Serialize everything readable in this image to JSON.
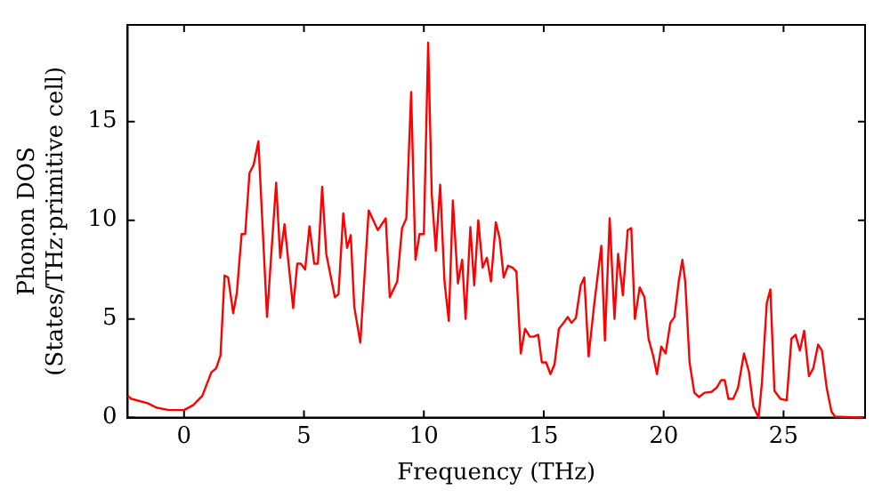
{
  "chart_data": {
    "type": "line",
    "xlabel": "Frequency (THz)",
    "ylabel": "Phonon DOS\n(States/THz·primitive cell)",
    "xlim": [
      -2.35,
      28.4
    ],
    "ylim": [
      0,
      19.9
    ],
    "xticks": [
      0,
      5,
      10,
      15,
      20,
      25
    ],
    "yticks": [
      0,
      5,
      10,
      15
    ],
    "grid": false,
    "legend": false,
    "marker": "none",
    "line_style": "solid",
    "x": [
      -2.35,
      -2.2,
      -1.52,
      -1.14,
      -0.63,
      0,
      0.38,
      0.76,
      1.14,
      1.34,
      1.52,
      1.69,
      1.84,
      2.05,
      2.2,
      2.4,
      2.55,
      2.73,
      2.9,
      3.1,
      3.46,
      3.84,
      4.01,
      4.19,
      4.55,
      4.72,
      4.87,
      5.05,
      5.23,
      5.43,
      5.58,
      5.76,
      5.93,
      6.29,
      6.44,
      6.64,
      6.8,
      6.95,
      7.1,
      7.35,
      7.7,
      8.08,
      8.41,
      8.58,
      8.89,
      9.09,
      9.27,
      9.47,
      9.65,
      9.82,
      10.0,
      10.18,
      10.33,
      10.5,
      10.68,
      10.86,
      11.04,
      11.21,
      11.42,
      11.6,
      11.74,
      11.94,
      12.1,
      12.27,
      12.45,
      12.63,
      12.8,
      13.0,
      13.16,
      13.33,
      13.51,
      13.69,
      13.86,
      14.04,
      14.22,
      14.42,
      14.57,
      14.77,
      14.92,
      15.1,
      15.28,
      15.45,
      15.63,
      15.83,
      16.0,
      16.16,
      16.34,
      16.54,
      16.69,
      16.87,
      17.1,
      17.4,
      17.55,
      17.75,
      17.95,
      18.1,
      18.3,
      18.5,
      18.65,
      18.8,
      19.0,
      19.2,
      19.37,
      19.57,
      19.72,
      19.9,
      20.08,
      20.28,
      20.45,
      20.63,
      20.78,
      20.9,
      21.08,
      21.28,
      21.48,
      21.7,
      21.99,
      22.2,
      22.4,
      22.55,
      22.7,
      22.9,
      23.1,
      23.35,
      23.56,
      23.74,
      23.96,
      24.1,
      24.3,
      24.45,
      24.62,
      24.87,
      25.13,
      25.33,
      25.5,
      25.68,
      25.86,
      26.06,
      26.24,
      26.44,
      26.6,
      26.8,
      27.0,
      27.15,
      28.3
    ],
    "series": [
      {
        "color": "#ff0000",
        "values": [
          1.1,
          0.95,
          0.73,
          0.5,
          0.38,
          0.38,
          0.63,
          1.1,
          2.3,
          2.5,
          3.15,
          7.2,
          7.1,
          5.3,
          6.3,
          9.3,
          9.3,
          12.4,
          12.8,
          14.0,
          5.1,
          11.9,
          8.1,
          9.8,
          5.55,
          7.8,
          7.8,
          7.5,
          9.7,
          7.8,
          7.8,
          11.7,
          8.3,
          6.1,
          6.25,
          10.35,
          8.6,
          9.25,
          5.6,
          3.8,
          10.5,
          9.5,
          10.1,
          6.1,
          6.9,
          9.6,
          10.1,
          16.5,
          8.0,
          9.3,
          9.3,
          19.0,
          11.3,
          8.45,
          11.8,
          6.9,
          4.9,
          11.0,
          6.8,
          8.0,
          5.0,
          9.65,
          6.7,
          10.0,
          7.6,
          8.1,
          6.9,
          9.9,
          9.1,
          7.1,
          7.7,
          7.6,
          7.4,
          3.25,
          4.5,
          4.1,
          4.1,
          4.2,
          2.8,
          2.8,
          2.2,
          2.7,
          4.5,
          4.8,
          5.1,
          4.8,
          5.05,
          6.7,
          7.1,
          3.1,
          5.7,
          8.7,
          3.9,
          10.1,
          5.0,
          8.3,
          6.2,
          9.5,
          9.6,
          5.0,
          6.6,
          6.1,
          4.0,
          3.1,
          2.2,
          3.6,
          3.25,
          4.8,
          5.1,
          6.9,
          8.0,
          6.9,
          2.8,
          1.26,
          1.04,
          1.26,
          1.3,
          1.5,
          1.9,
          1.9,
          0.95,
          0.95,
          1.5,
          3.25,
          2.3,
          0.57,
          0,
          1.8,
          5.8,
          6.5,
          1.36,
          0.95,
          0.88,
          4.0,
          4.2,
          3.4,
          4.4,
          2.1,
          2.5,
          3.7,
          3.4,
          1.5,
          0.3,
          0.05,
          0
        ]
      }
    ]
  }
}
